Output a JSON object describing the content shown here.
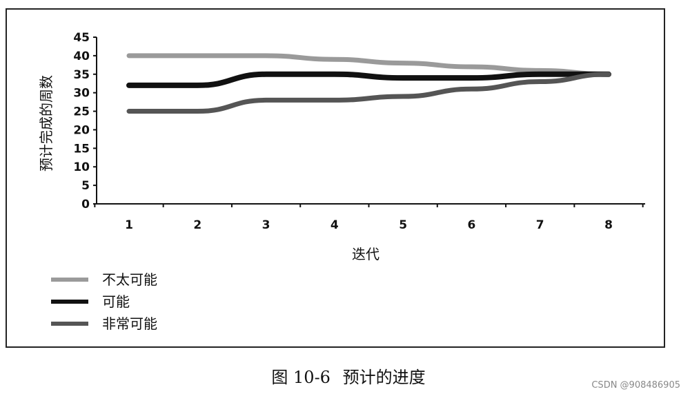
{
  "chart_data": {
    "type": "line",
    "x": [
      1,
      2,
      3,
      4,
      5,
      6,
      7,
      8
    ],
    "xlabel": "迭代",
    "ylabel": "预计完成的周数",
    "ylim": [
      0,
      45
    ],
    "yticks": [
      0,
      5,
      10,
      15,
      20,
      25,
      30,
      35,
      40,
      45
    ],
    "legend_position": "bottom-left",
    "grid": false,
    "series": [
      {
        "name": "不太可能",
        "color": "#9a9a9a",
        "style": "solid-gray",
        "values": [
          40,
          40,
          40,
          39,
          38,
          37,
          36,
          35
        ]
      },
      {
        "name": "可能",
        "color": "#111111",
        "style": "solid-black",
        "values": [
          32,
          32,
          35,
          35,
          34,
          34,
          35,
          35
        ]
      },
      {
        "name": "非常可能",
        "color": "#555555",
        "style": "solid-black",
        "values": [
          25,
          25,
          28,
          28,
          29,
          31,
          33,
          35
        ]
      }
    ]
  },
  "caption": {
    "figure_no": "图 10-6",
    "title": "预计的进度"
  },
  "watermark": "CSDN @908486905"
}
